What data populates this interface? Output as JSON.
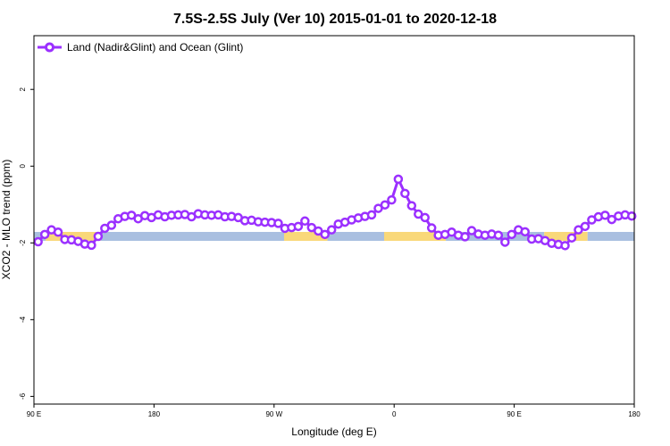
{
  "chart_data": {
    "type": "line",
    "title": "7.5S-2.5S July (Ver 10)   2015-01-01 to 2020-12-18",
    "xlabel": "Longitude (deg E)",
    "ylabel": "XCO2 - MLO trend (ppm)",
    "xlim": [
      90,
      450
    ],
    "ylim": [
      -6.2,
      3.4
    ],
    "x_ticks": [
      {
        "value": 90,
        "label": "90 E"
      },
      {
        "value": 162,
        "label": "180"
      },
      {
        "value": 234,
        "label": "90 W"
      },
      {
        "value": 306,
        "label": "0"
      },
      {
        "value": 378,
        "label": "90 E"
      },
      {
        "value": 450,
        "label": "180"
      }
    ],
    "y_ticks": [
      {
        "value": 2,
        "label": "2"
      },
      {
        "value": 0,
        "label": "0"
      },
      {
        "value": -2,
        "label": "-2"
      },
      {
        "value": -4,
        "label": "-4"
      },
      {
        "value": -6,
        "label": "-6"
      }
    ],
    "legend": {
      "position": "top-left",
      "entries": [
        "Land (Nadir&Glint) and Ocean (Glint)"
      ]
    },
    "series": [
      {
        "name": "Land (Nadir&Glint) and Ocean (Glint)",
        "color": "#9b30ff",
        "x": [
          92.5,
          96.5,
          100.5,
          104.5,
          108.5,
          112.5,
          116.5,
          120.5,
          124.5,
          128.5,
          132.5,
          136.5,
          140.5,
          144.5,
          148.5,
          152.5,
          156.5,
          160.5,
          164.5,
          168.5,
          172.5,
          176.5,
          180.5,
          184.5,
          188.5,
          192.5,
          196.5,
          200.5,
          204.5,
          208.5,
          212.5,
          216.5,
          220.5,
          224.5,
          228.5,
          232.5,
          236.5,
          240.5,
          244.5,
          248.5,
          252.5,
          256.5,
          260.5,
          264.5,
          268.5,
          272.5,
          276.5,
          280.5,
          284.5,
          288.5,
          292.5,
          296.5,
          300.5,
          304.5,
          308.5,
          312.5,
          316.5,
          320.5,
          324.5,
          328.5,
          332.5,
          336.5,
          340.5,
          344.5,
          348.5,
          352.5,
          356.5,
          360.5,
          364.5,
          368.5,
          372.5,
          376.5,
          380.5,
          384.5,
          388.5,
          392.5,
          396.5,
          400.5,
          404.5,
          408.5,
          412.5,
          416.5,
          420.5,
          424.5,
          428.5,
          432.5,
          436.5,
          440.5,
          444.5,
          448.5
        ],
        "values": [
          -1.97,
          -1.78,
          -1.66,
          -1.72,
          -1.91,
          -1.92,
          -1.96,
          -2.03,
          -2.06,
          -1.83,
          -1.62,
          -1.54,
          -1.37,
          -1.31,
          -1.28,
          -1.37,
          -1.29,
          -1.34,
          -1.27,
          -1.32,
          -1.28,
          -1.27,
          -1.26,
          -1.32,
          -1.24,
          -1.27,
          -1.28,
          -1.27,
          -1.32,
          -1.31,
          -1.34,
          -1.42,
          -1.41,
          -1.45,
          -1.46,
          -1.47,
          -1.49,
          -1.62,
          -1.6,
          -1.57,
          -1.43,
          -1.6,
          -1.69,
          -1.78,
          -1.66,
          -1.51,
          -1.46,
          -1.4,
          -1.35,
          -1.31,
          -1.27,
          -1.1,
          -1.01,
          -0.88,
          -0.34,
          -0.71,
          -1.03,
          -1.25,
          -1.34,
          -1.61,
          -1.8,
          -1.78,
          -1.72,
          -1.8,
          -1.84,
          -1.68,
          -1.77,
          -1.8,
          -1.77,
          -1.8,
          -1.98,
          -1.78,
          -1.66,
          -1.71,
          -1.9,
          -1.89,
          -1.94,
          -2.01,
          -2.04,
          -2.07,
          -1.87,
          -1.66,
          -1.57,
          -1.4,
          -1.32,
          -1.28,
          -1.39,
          -1.3,
          -1.27,
          -1.3
        ]
      }
    ],
    "surface_band": {
      "y_center": -1.83,
      "segments": [
        {
          "x0": 90,
          "x1": 97,
          "kind": "ocean"
        },
        {
          "x0": 97,
          "x1": 130,
          "kind": "land"
        },
        {
          "x0": 130,
          "x1": 240,
          "kind": "ocean"
        },
        {
          "x0": 240,
          "x1": 266,
          "kind": "land"
        },
        {
          "x0": 266,
          "x1": 300,
          "kind": "ocean"
        },
        {
          "x0": 300,
          "x1": 337,
          "kind": "land"
        },
        {
          "x0": 337,
          "x1": 396,
          "kind": "ocean"
        },
        {
          "x0": 396,
          "x1": 422,
          "kind": "land"
        },
        {
          "x0": 422,
          "x1": 450,
          "kind": "ocean"
        }
      ],
      "colors": {
        "ocean": "#a9bfe0",
        "land": "#f9d879"
      }
    }
  }
}
